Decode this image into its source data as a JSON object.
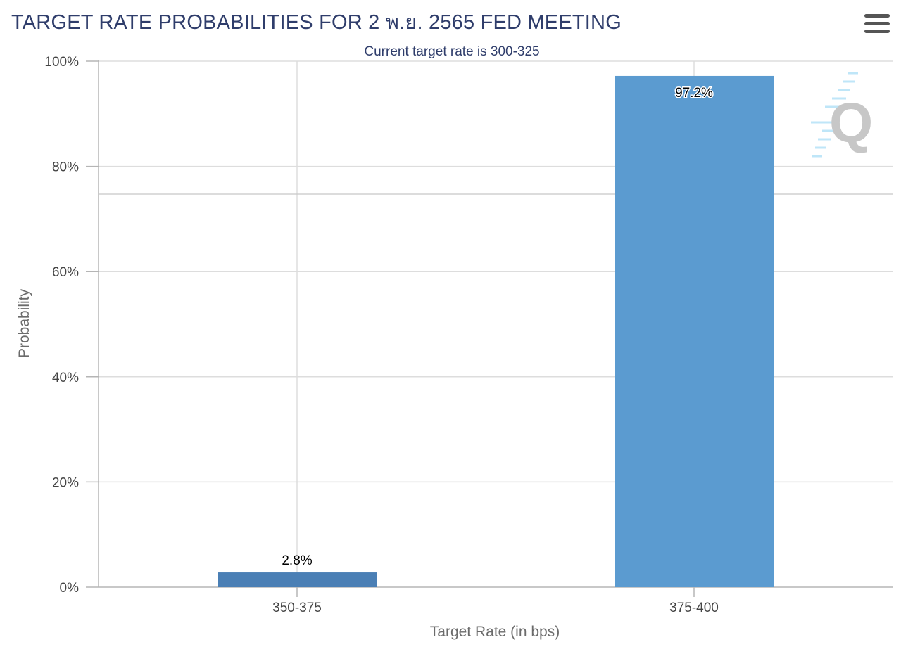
{
  "header": {
    "title": "TARGET RATE PROBABILITIES FOR 2 พ.ย. 2565 FED MEETING",
    "menu_icon": "hamburger-menu-icon",
    "watermark_icon": "q-logo-icon"
  },
  "colors": {
    "bar_1": "#4a7fb5",
    "bar_2": "#5b9bd0",
    "grid": "#dddddd",
    "title": "#2f3d6b"
  },
  "chart_data": {
    "type": "bar",
    "title": "TARGET RATE PROBABILITIES FOR 2 พ.ย. 2565 FED MEETING",
    "subtitle": "Current target rate is 300-325",
    "xlabel": "Target Rate (in bps)",
    "ylabel": "Probability",
    "categories": [
      "350-375",
      "375-400"
    ],
    "values": [
      2.8,
      97.2
    ],
    "data_labels": [
      "2.8%",
      "97.2%"
    ],
    "ylim": [
      0,
      100
    ],
    "yticks": [
      0,
      20,
      40,
      60,
      80,
      100
    ],
    "ytick_labels": [
      "0%",
      "20%",
      "40%",
      "60%",
      "80%",
      "100%"
    ],
    "grid": true,
    "legend": "none"
  }
}
